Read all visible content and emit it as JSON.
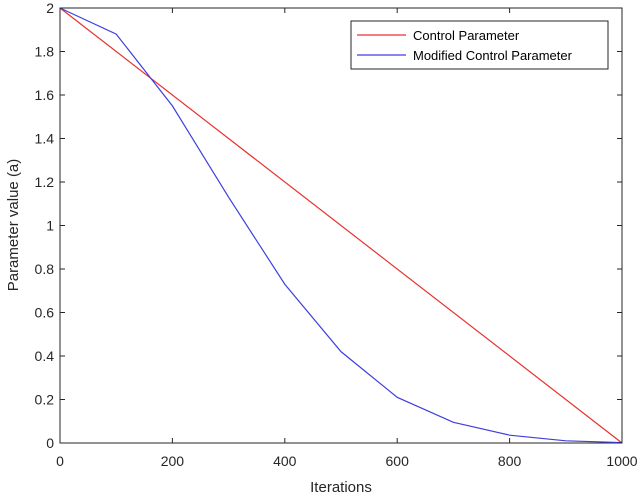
{
  "chart_data": {
    "type": "line",
    "title": "",
    "xlabel": "Iterations",
    "ylabel": "Parameter value (a)",
    "xlim": [
      0,
      1000
    ],
    "ylim": [
      0,
      2
    ],
    "xticks": [
      0,
      200,
      400,
      600,
      800,
      1000
    ],
    "xtick_labels": [
      "0",
      "200",
      "400",
      "600",
      "800",
      "1000"
    ],
    "yticks": [
      0,
      0.2,
      0.4,
      0.6,
      0.8,
      1,
      1.2,
      1.4,
      1.6,
      1.8,
      2
    ],
    "ytick_labels": [
      "0",
      "0.2",
      "0.4",
      "0.6",
      "0.8",
      "1",
      "1.2",
      "1.4",
      "1.6",
      "1.8",
      "2"
    ],
    "grid": false,
    "legend_position": "top-right",
    "series": [
      {
        "name": "Control Parameter",
        "color": "#e8312f",
        "x": [
          0,
          1000
        ],
        "y": [
          2,
          0
        ]
      },
      {
        "name": "Modified Control Parameter",
        "color": "#3f3fe0",
        "x": [
          0,
          100,
          200,
          300,
          400,
          500,
          600,
          700,
          800,
          900,
          1000
        ],
        "y": [
          2,
          1.88,
          1.55,
          1.13,
          0.73,
          0.42,
          0.21,
          0.095,
          0.036,
          0.01,
          0.002
        ]
      }
    ]
  }
}
